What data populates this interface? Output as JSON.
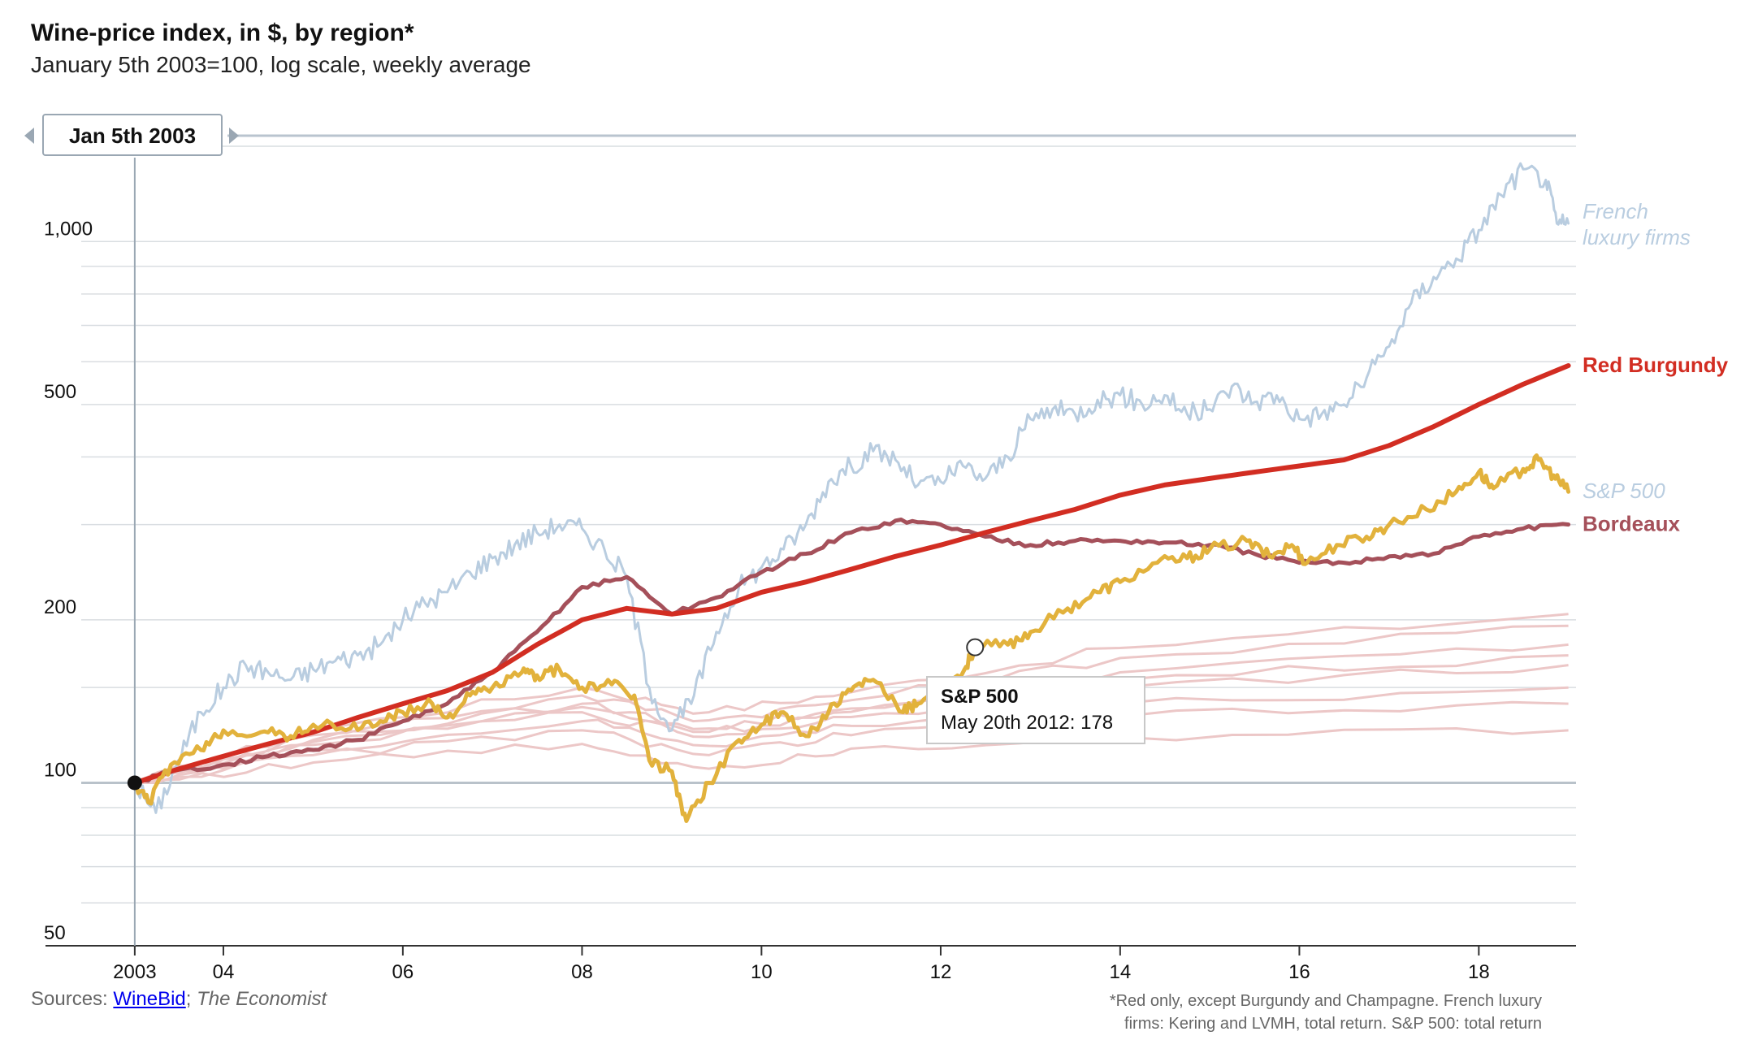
{
  "header": {
    "title": "Wine-price index, in $, by region*",
    "subtitle": "January 5th 2003=100, log scale, weekly average"
  },
  "slider": {
    "date_label": "Jan 5th 2003"
  },
  "tooltip": {
    "series": "S&P 500",
    "value_text": "May 20th 2012: 178"
  },
  "footer": {
    "sources_prefix": "Sources: ",
    "sources_link": "WineBid",
    "sources_sep": "; ",
    "sources_pub": "The Economist",
    "footnote_line1": "*Red only, except Burgundy and Champagne.   French luxury",
    "footnote_line2": "firms: Kering and LVMH, total return. S&P 500: total return"
  },
  "colors": {
    "french": "#b9cde0",
    "burgundy": "#d22d22",
    "sp500": "#e2b23c",
    "bordeaux": "#a5505a",
    "other": "#ecc7c7",
    "grid": "#d9dde1",
    "baseline": "#b9c2ca"
  },
  "chart_data": {
    "type": "line",
    "title": "Wine-price index, in $, by region*",
    "subtitle": "January 5th 2003=100, log scale, weekly average",
    "x_scale": "time",
    "xlim": [
      "2002-06-01",
      "2019-02-01"
    ],
    "y_scale": "log",
    "ylim": [
      50,
      1500
    ],
    "x_ticks": [
      {
        "date": "2003-01-05",
        "label": "2003"
      },
      {
        "date": "2004-01-01",
        "label": "04"
      },
      {
        "date": "2006-01-01",
        "label": "06"
      },
      {
        "date": "2008-01-01",
        "label": "08"
      },
      {
        "date": "2010-01-01",
        "label": "10"
      },
      {
        "date": "2012-01-01",
        "label": "12"
      },
      {
        "date": "2014-01-01",
        "label": "14"
      },
      {
        "date": "2016-01-01",
        "label": "16"
      },
      {
        "date": "2018-01-01",
        "label": "18"
      }
    ],
    "y_ticks": [
      {
        "value": 50,
        "label": "50"
      },
      {
        "value": 100,
        "label": "100"
      },
      {
        "value": 200,
        "label": "200"
      },
      {
        "value": 500,
        "label": "500"
      },
      {
        "value": 1000,
        "label": "1,000"
      }
    ],
    "grid": true,
    "baseline": 100,
    "series": [
      {
        "name": "French luxury firms",
        "label": "French",
        "label2": "luxury firms",
        "color_key": "french",
        "italic": true,
        "points": [
          [
            "2003-01-05",
            100
          ],
          [
            "2003-04-01",
            88
          ],
          [
            "2003-07-01",
            110
          ],
          [
            "2003-10-01",
            135
          ],
          [
            "2004-01-01",
            150
          ],
          [
            "2004-04-01",
            165
          ],
          [
            "2004-07-01",
            160
          ],
          [
            "2004-10-01",
            155
          ],
          [
            "2005-01-01",
            162
          ],
          [
            "2005-04-01",
            168
          ],
          [
            "2005-07-01",
            172
          ],
          [
            "2005-10-01",
            180
          ],
          [
            "2006-01-01",
            200
          ],
          [
            "2006-04-01",
            215
          ],
          [
            "2006-07-01",
            225
          ],
          [
            "2006-10-01",
            245
          ],
          [
            "2007-01-01",
            260
          ],
          [
            "2007-04-01",
            275
          ],
          [
            "2007-07-01",
            290
          ],
          [
            "2007-10-01",
            300
          ],
          [
            "2008-01-01",
            295
          ],
          [
            "2008-04-01",
            270
          ],
          [
            "2008-07-01",
            240
          ],
          [
            "2008-10-01",
            150
          ],
          [
            "2009-01-01",
            125
          ],
          [
            "2009-04-01",
            145
          ],
          [
            "2009-07-01",
            190
          ],
          [
            "2009-10-01",
            230
          ],
          [
            "2010-01-01",
            250
          ],
          [
            "2010-04-01",
            270
          ],
          [
            "2010-07-01",
            300
          ],
          [
            "2010-10-01",
            360
          ],
          [
            "2011-01-01",
            385
          ],
          [
            "2011-04-01",
            410
          ],
          [
            "2011-07-01",
            395
          ],
          [
            "2011-10-01",
            355
          ],
          [
            "2012-01-01",
            360
          ],
          [
            "2012-04-01",
            385
          ],
          [
            "2012-07-01",
            365
          ],
          [
            "2012-10-01",
            400
          ],
          [
            "2013-01-01",
            470
          ],
          [
            "2013-04-01",
            490
          ],
          [
            "2013-07-01",
            480
          ],
          [
            "2013-10-01",
            510
          ],
          [
            "2014-01-01",
            520
          ],
          [
            "2014-04-01",
            500
          ],
          [
            "2014-07-01",
            520
          ],
          [
            "2014-10-01",
            480
          ],
          [
            "2015-01-01",
            490
          ],
          [
            "2015-04-01",
            540
          ],
          [
            "2015-07-01",
            505
          ],
          [
            "2015-10-01",
            520
          ],
          [
            "2016-01-01",
            470
          ],
          [
            "2016-04-01",
            480
          ],
          [
            "2016-07-01",
            500
          ],
          [
            "2016-10-01",
            560
          ],
          [
            "2017-01-01",
            640
          ],
          [
            "2017-04-01",
            770
          ],
          [
            "2017-07-01",
            860
          ],
          [
            "2017-10-01",
            930
          ],
          [
            "2018-01-01",
            1050
          ],
          [
            "2018-04-01",
            1220
          ],
          [
            "2018-07-01",
            1360
          ],
          [
            "2018-10-01",
            1300
          ],
          [
            "2018-11-15",
            1080
          ],
          [
            "2019-01-01",
            1080
          ]
        ]
      },
      {
        "name": "Red Burgundy",
        "label": "Red Burgundy",
        "color_key": "burgundy",
        "bold": true,
        "points": [
          [
            "2003-01-05",
            100
          ],
          [
            "2003-07-01",
            106
          ],
          [
            "2004-01-01",
            112
          ],
          [
            "2004-07-01",
            118
          ],
          [
            "2005-01-01",
            124
          ],
          [
            "2005-07-01",
            132
          ],
          [
            "2006-01-01",
            140
          ],
          [
            "2006-07-01",
            148
          ],
          [
            "2007-01-01",
            160
          ],
          [
            "2007-07-01",
            180
          ],
          [
            "2008-01-01",
            200
          ],
          [
            "2008-07-01",
            210
          ],
          [
            "2009-01-01",
            205
          ],
          [
            "2009-07-01",
            210
          ],
          [
            "2010-01-01",
            225
          ],
          [
            "2010-07-01",
            235
          ],
          [
            "2011-01-01",
            248
          ],
          [
            "2011-07-01",
            262
          ],
          [
            "2012-01-01",
            275
          ],
          [
            "2012-07-01",
            290
          ],
          [
            "2013-01-01",
            305
          ],
          [
            "2013-07-01",
            320
          ],
          [
            "2014-01-01",
            340
          ],
          [
            "2014-07-01",
            355
          ],
          [
            "2015-01-01",
            365
          ],
          [
            "2015-07-01",
            375
          ],
          [
            "2016-01-01",
            385
          ],
          [
            "2016-07-01",
            395
          ],
          [
            "2017-01-01",
            420
          ],
          [
            "2017-07-01",
            455
          ],
          [
            "2018-01-01",
            500
          ],
          [
            "2018-07-01",
            545
          ],
          [
            "2019-01-01",
            590
          ]
        ]
      },
      {
        "name": "S&P 500",
        "label": "S&P 500",
        "color_key": "sp500",
        "italic": true,
        "label_color_key": "french",
        "points": [
          [
            "2003-01-05",
            100
          ],
          [
            "2003-03-01",
            92
          ],
          [
            "2003-06-01",
            108
          ],
          [
            "2003-10-01",
            115
          ],
          [
            "2004-01-01",
            125
          ],
          [
            "2004-06-01",
            124
          ],
          [
            "2004-10-01",
            122
          ],
          [
            "2005-01-01",
            128
          ],
          [
            "2005-06-01",
            126
          ],
          [
            "2005-10-01",
            130
          ],
          [
            "2006-01-01",
            135
          ],
          [
            "2006-05-01",
            140
          ],
          [
            "2006-07-01",
            132
          ],
          [
            "2006-10-01",
            145
          ],
          [
            "2007-01-01",
            150
          ],
          [
            "2007-05-01",
            160
          ],
          [
            "2007-07-01",
            158
          ],
          [
            "2007-10-01",
            162
          ],
          [
            "2008-01-01",
            150
          ],
          [
            "2008-05-01",
            152
          ],
          [
            "2008-08-01",
            145
          ],
          [
            "2008-10-01",
            110
          ],
          [
            "2009-01-01",
            105
          ],
          [
            "2009-03-01",
            85
          ],
          [
            "2009-06-01",
            100
          ],
          [
            "2009-10-01",
            120
          ],
          [
            "2010-01-01",
            128
          ],
          [
            "2010-04-01",
            135
          ],
          [
            "2010-07-01",
            122
          ],
          [
            "2010-10-01",
            135
          ],
          [
            "2011-01-01",
            148
          ],
          [
            "2011-04-01",
            155
          ],
          [
            "2011-08-01",
            135
          ],
          [
            "2011-10-01",
            140
          ],
          [
            "2012-01-01",
            150
          ],
          [
            "2012-04-01",
            160
          ],
          [
            "2012-05-20",
            178
          ],
          [
            "2012-10-01",
            180
          ],
          [
            "2013-01-01",
            190
          ],
          [
            "2013-06-01",
            210
          ],
          [
            "2013-10-01",
            225
          ],
          [
            "2014-01-01",
            235
          ],
          [
            "2014-06-01",
            255
          ],
          [
            "2014-10-01",
            260
          ],
          [
            "2015-01-01",
            270
          ],
          [
            "2015-06-01",
            280
          ],
          [
            "2015-09-01",
            262
          ],
          [
            "2015-12-01",
            275
          ],
          [
            "2016-02-01",
            255
          ],
          [
            "2016-06-01",
            275
          ],
          [
            "2016-10-01",
            285
          ],
          [
            "2017-01-01",
            300
          ],
          [
            "2017-06-01",
            320
          ],
          [
            "2017-10-01",
            345
          ],
          [
            "2018-01-01",
            375
          ],
          [
            "2018-03-01",
            350
          ],
          [
            "2018-07-01",
            380
          ],
          [
            "2018-09-01",
            395
          ],
          [
            "2018-11-01",
            370
          ],
          [
            "2019-01-01",
            345
          ]
        ]
      },
      {
        "name": "Bordeaux",
        "label": "Bordeaux",
        "color_key": "bordeaux",
        "bold": true,
        "points": [
          [
            "2003-01-05",
            100
          ],
          [
            "2003-06-01",
            105
          ],
          [
            "2004-01-01",
            108
          ],
          [
            "2004-07-01",
            112
          ],
          [
            "2005-01-01",
            115
          ],
          [
            "2005-07-01",
            120
          ],
          [
            "2006-01-01",
            130
          ],
          [
            "2006-07-01",
            140
          ],
          [
            "2007-01-01",
            160
          ],
          [
            "2007-07-01",
            190
          ],
          [
            "2008-01-01",
            230
          ],
          [
            "2008-07-01",
            240
          ],
          [
            "2009-01-01",
            205
          ],
          [
            "2009-07-01",
            220
          ],
          [
            "2010-01-01",
            245
          ],
          [
            "2010-07-01",
            265
          ],
          [
            "2011-01-01",
            290
          ],
          [
            "2011-07-01",
            305
          ],
          [
            "2012-01-01",
            300
          ],
          [
            "2012-07-01",
            285
          ],
          [
            "2013-01-01",
            275
          ],
          [
            "2013-07-01",
            280
          ],
          [
            "2014-01-01",
            280
          ],
          [
            "2014-07-01",
            278
          ],
          [
            "2015-01-01",
            275
          ],
          [
            "2015-07-01",
            265
          ],
          [
            "2016-01-01",
            255
          ],
          [
            "2016-07-01",
            255
          ],
          [
            "2017-01-01",
            262
          ],
          [
            "2017-07-01",
            265
          ],
          [
            "2018-01-01",
            285
          ],
          [
            "2018-07-01",
            295
          ],
          [
            "2019-01-01",
            300
          ]
        ]
      }
    ],
    "faint_series_count": 8,
    "highlight_point": {
      "date": "2012-05-20",
      "value": 178,
      "series": "S&P 500"
    },
    "cursor_date": "2003-01-05"
  }
}
